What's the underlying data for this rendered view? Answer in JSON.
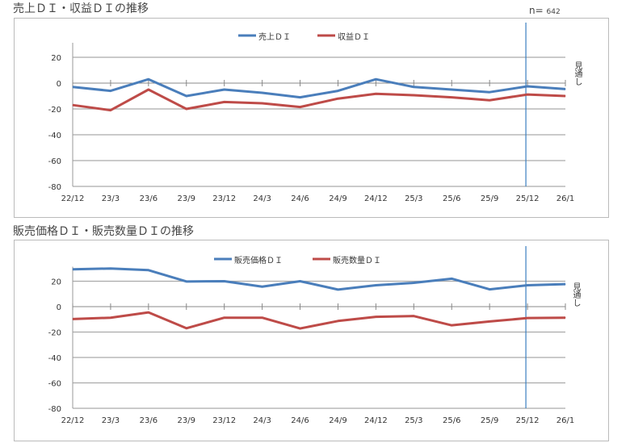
{
  "n_label": "n=",
  "n_value": "642",
  "chart_data": [
    {
      "type": "line",
      "title": "売上ＤＩ・収益ＤＩの推移",
      "categories": [
        "22/12",
        "23/3",
        "23/6",
        "23/9",
        "23/12",
        "24/3",
        "24/6",
        "24/9",
        "24/12",
        "25/3",
        "25/6",
        "25/9",
        "25/12",
        "26/1"
      ],
      "ylim": [
        -80,
        20
      ],
      "yticks": [
        20,
        0,
        -20,
        -40,
        -60,
        -80
      ],
      "grid": true,
      "legend": "top-center",
      "annotation": "見通し",
      "series": [
        {
          "name": "売上ＤＩ",
          "color": "#4a7ebb",
          "values": [
            -3,
            -6,
            3,
            -10,
            -5,
            -7.5,
            -11,
            -6,
            3,
            -3,
            -5,
            -7,
            -2.5,
            -4.6
          ]
        },
        {
          "name": "収益ＤＩ",
          "color": "#be4b48",
          "values": [
            -17,
            -21,
            -5,
            -20,
            -14.6,
            -15.6,
            -18.5,
            -12,
            -8.3,
            -9.4,
            -11,
            -13.3,
            -8.8,
            -10
          ]
        }
      ]
    },
    {
      "type": "line",
      "title": "販売価格ＤＩ・販売数量ＤＩの推移",
      "categories": [
        "22/12",
        "23/3",
        "23/6",
        "23/9",
        "23/12",
        "24/3",
        "24/6",
        "24/9",
        "24/12",
        "25/3",
        "25/6",
        "25/9",
        "25/12",
        "26/1"
      ],
      "ylim": [
        -80,
        20
      ],
      "yticks": [
        20,
        0,
        -20,
        -40,
        -60,
        -80
      ],
      "grid": true,
      "legend": "top-center",
      "annotation": "見通し",
      "series": [
        {
          "name": "販売価格ＤＩ",
          "color": "#4a7ebb",
          "values": [
            29.4,
            30,
            28.7,
            19.8,
            20,
            15.7,
            20,
            13.4,
            16.8,
            18.7,
            22,
            13.6,
            16.8,
            17.7
          ]
        },
        {
          "name": "販売数量ＤＩ",
          "color": "#be4b48",
          "values": [
            -9.8,
            -8.7,
            -4.5,
            -17,
            -8.7,
            -8.7,
            -17.2,
            -11.3,
            -8,
            -7.4,
            -14.7,
            -11.7,
            -9,
            -8.7
          ]
        }
      ]
    }
  ]
}
